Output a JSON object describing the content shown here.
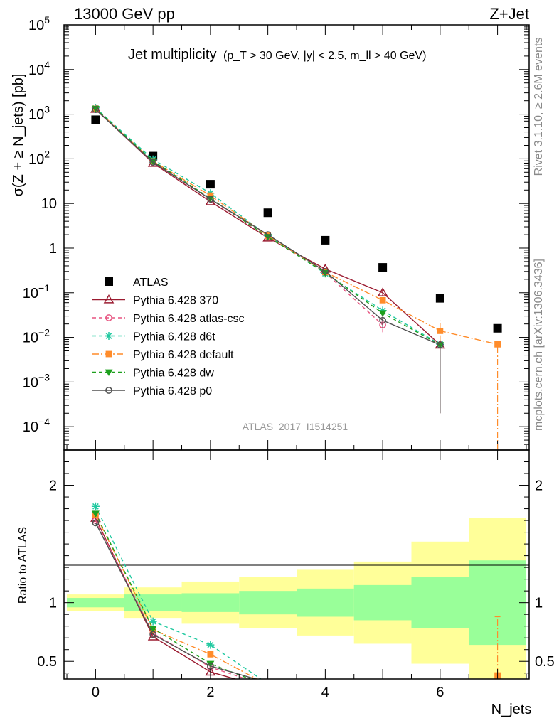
{
  "header": {
    "left": "13000 GeV pp",
    "right": "Z+Jet"
  },
  "side_labels": {
    "rivet": "Rivet 3.1.10, ≥ 2.6M events",
    "mcplots": "mcplots.cern.ch [arXiv:1306.3436]"
  },
  "analysis_id": "ATLAS_2017_I1514251",
  "chart_data": [
    {
      "type": "scatter",
      "title": "Jet multiplicity",
      "subtitle": "(p_T > 30 GeV, |y| < 2.5, m_ll > 40 GeV)",
      "xlabel": "N_jets",
      "ylabel": "σ(Z + ≥ N_jets) [pb]",
      "yscale": "log",
      "xlim": [
        -0.55,
        7.55
      ],
      "ylim": [
        3e-05,
        100000
      ],
      "x_ticks": [
        "0",
        "2",
        "4",
        "6"
      ],
      "y_ticks": [
        "10^-4",
        "10^-3",
        "10^-2",
        "10^-1",
        "1",
        "10",
        "10^2",
        "10^3",
        "10^4",
        "10^5"
      ],
      "legend_position": "lower-left",
      "series": [
        {
          "name": "ATLAS",
          "color": "#000000",
          "marker": "square",
          "x": [
            0,
            1,
            2,
            3,
            4,
            5,
            6,
            7
          ],
          "values": [
            750,
            115,
            27,
            6.2,
            1.5,
            0.37,
            0.075,
            0.016
          ]
        },
        {
          "name": "Pythia 6.428 370",
          "color": "#9b1b30",
          "marker": "triangle-open",
          "x": [
            0,
            1,
            2,
            3,
            4,
            5,
            6
          ],
          "values": [
            1300,
            80,
            11,
            1.7,
            0.34,
            0.1,
            0.0068
          ],
          "err_lo": [
            null,
            null,
            null,
            null,
            null,
            0.015,
            0.0066
          ],
          "err_hi": [
            null,
            null,
            null,
            null,
            null,
            0.015,
            0.0002
          ]
        },
        {
          "name": "Pythia 6.428 atlas-csc",
          "color": "#e75480",
          "marker": "circle-open",
          "x": [
            0,
            1,
            2,
            3,
            4,
            5
          ],
          "values": [
            1280,
            83,
            12.5,
            1.8,
            0.28,
            0.019
          ],
          "err_lo": [
            null,
            null,
            null,
            null,
            null,
            0.006
          ],
          "err_hi": [
            null,
            null,
            null,
            null,
            null,
            0.006
          ]
        },
        {
          "name": "Pythia 6.428 d6t",
          "color": "#20c9a0",
          "marker": "star",
          "x": [
            0,
            1,
            2,
            3,
            4,
            5,
            6
          ],
          "values": [
            1380,
            97,
            17,
            1.9,
            0.27,
            0.04,
            0.007
          ]
        },
        {
          "name": "Pythia 6.428 default",
          "color": "#ff8c2a",
          "marker": "square-filled",
          "x": [
            0,
            1,
            2,
            3,
            4,
            5,
            6,
            7
          ],
          "values": [
            1320,
            88,
            15,
            1.9,
            0.29,
            0.068,
            0.014,
            0.007
          ],
          "err_lo": [
            null,
            null,
            null,
            null,
            null,
            null,
            0.006,
            0.007
          ],
          "err_hi": [
            null,
            null,
            null,
            null,
            null,
            null,
            0.01,
            0.001
          ]
        },
        {
          "name": "Pythia 6.428 dw",
          "color": "#1ea01e",
          "marker": "triangle-down",
          "x": [
            0,
            1,
            2,
            3,
            4,
            5,
            6
          ],
          "values": [
            1330,
            89,
            13,
            1.8,
            0.28,
            0.035,
            0.0068
          ]
        },
        {
          "name": "Pythia 6.428 p0",
          "color": "#505050",
          "marker": "circle-open",
          "x": [
            0,
            1,
            2,
            3,
            4,
            5,
            6
          ],
          "values": [
            1270,
            84,
            12.5,
            2.0,
            0.3,
            0.024,
            0.0068
          ],
          "err_lo": [
            null,
            null,
            null,
            null,
            null,
            0.008,
            0.0066
          ],
          "err_hi": [
            null,
            null,
            null,
            null,
            null,
            0.008,
            0.0002
          ]
        }
      ]
    },
    {
      "type": "line",
      "ylabel": "Ratio to ATLAS",
      "xlabel": "N_jets",
      "xlim": [
        -0.55,
        7.55
      ],
      "ylim": [
        0.35,
        2.3
      ],
      "x_ticks": [
        "0",
        "2",
        "4",
        "6"
      ],
      "y_ticks": [
        "0.5",
        "1",
        "2"
      ],
      "band_inner": [
        {
          "x0": -0.5,
          "x1": 0.5,
          "lo": 0.96,
          "hi": 1.04
        },
        {
          "x0": 0.5,
          "x1": 1.5,
          "lo": 0.93,
          "hi": 1.07
        },
        {
          "x0": 1.5,
          "x1": 2.5,
          "lo": 0.92,
          "hi": 1.08
        },
        {
          "x0": 2.5,
          "x1": 3.5,
          "lo": 0.9,
          "hi": 1.1
        },
        {
          "x0": 3.5,
          "x1": 4.5,
          "lo": 0.88,
          "hi": 1.12
        },
        {
          "x0": 4.5,
          "x1": 5.5,
          "lo": 0.85,
          "hi": 1.15
        },
        {
          "x0": 5.5,
          "x1": 6.5,
          "lo": 0.78,
          "hi": 1.22
        },
        {
          "x0": 6.5,
          "x1": 7.5,
          "lo": 0.64,
          "hi": 1.36
        }
      ],
      "band_outer": [
        {
          "x0": -0.5,
          "x1": 0.5,
          "lo": 0.93,
          "hi": 1.07
        },
        {
          "x0": 0.5,
          "x1": 1.5,
          "lo": 0.87,
          "hi": 1.13
        },
        {
          "x0": 1.5,
          "x1": 2.5,
          "lo": 0.82,
          "hi": 1.18
        },
        {
          "x0": 2.5,
          "x1": 3.5,
          "lo": 0.78,
          "hi": 1.22
        },
        {
          "x0": 3.5,
          "x1": 4.5,
          "lo": 0.72,
          "hi": 1.28
        },
        {
          "x0": 4.5,
          "x1": 5.5,
          "lo": 0.65,
          "hi": 1.35
        },
        {
          "x0": 5.5,
          "x1": 6.5,
          "lo": 0.48,
          "hi": 1.52
        },
        {
          "x0": 6.5,
          "x1": 7.5,
          "lo": 0.3,
          "hi": 1.72
        }
      ],
      "series": [
        {
          "name": "Pythia 6.428 370",
          "color": "#9b1b30",
          "marker": "triangle-open",
          "x": [
            0,
            1,
            2,
            3
          ],
          "values": [
            1.72,
            0.71,
            0.41,
            0.27
          ]
        },
        {
          "name": "Pythia 6.428 atlas-csc",
          "color": "#e75480",
          "marker": "circle-open",
          "x": [
            0,
            1,
            2,
            3
          ],
          "values": [
            1.7,
            0.74,
            0.45,
            0.29
          ]
        },
        {
          "name": "Pythia 6.428 d6t",
          "color": "#20c9a0",
          "marker": "star",
          "x": [
            0,
            1,
            2,
            3
          ],
          "values": [
            1.82,
            0.84,
            0.64,
            0.31
          ]
        },
        {
          "name": "Pythia 6.428 default",
          "color": "#ff8c2a",
          "marker": "square-filled",
          "x": [
            0,
            1,
            2,
            3,
            7
          ],
          "values": [
            1.75,
            0.77,
            0.56,
            0.3,
            0.38
          ],
          "err_lo": [
            null,
            null,
            null,
            null,
            0.4
          ],
          "err_hi": [
            null,
            null,
            null,
            null,
            0.5
          ]
        },
        {
          "name": "Pythia 6.428 dw",
          "color": "#1ea01e",
          "marker": "triangle-down",
          "x": [
            0,
            1,
            2,
            3
          ],
          "values": [
            1.76,
            0.78,
            0.48,
            0.29
          ]
        },
        {
          "name": "Pythia 6.428 p0",
          "color": "#505050",
          "marker": "circle-open",
          "x": [
            0,
            1,
            2,
            3
          ],
          "values": [
            1.68,
            0.73,
            0.46,
            0.32
          ]
        }
      ]
    }
  ]
}
